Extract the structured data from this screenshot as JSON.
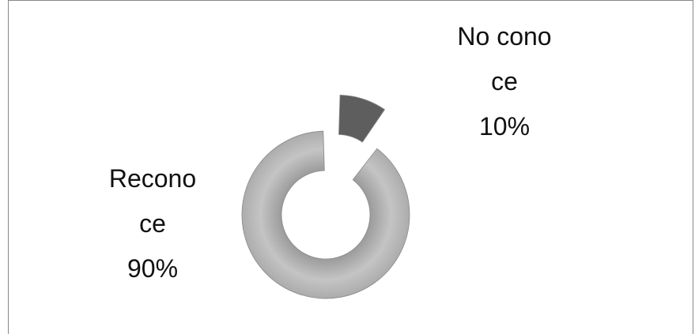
{
  "chart_data": {
    "type": "donut",
    "categories": [
      "No conoce",
      "Reconoce"
    ],
    "values": [
      10,
      90
    ],
    "value_labels": [
      "10%",
      "90%"
    ],
    "colors": [
      "#5e5e5e",
      "#b5b5b5"
    ]
  }
}
